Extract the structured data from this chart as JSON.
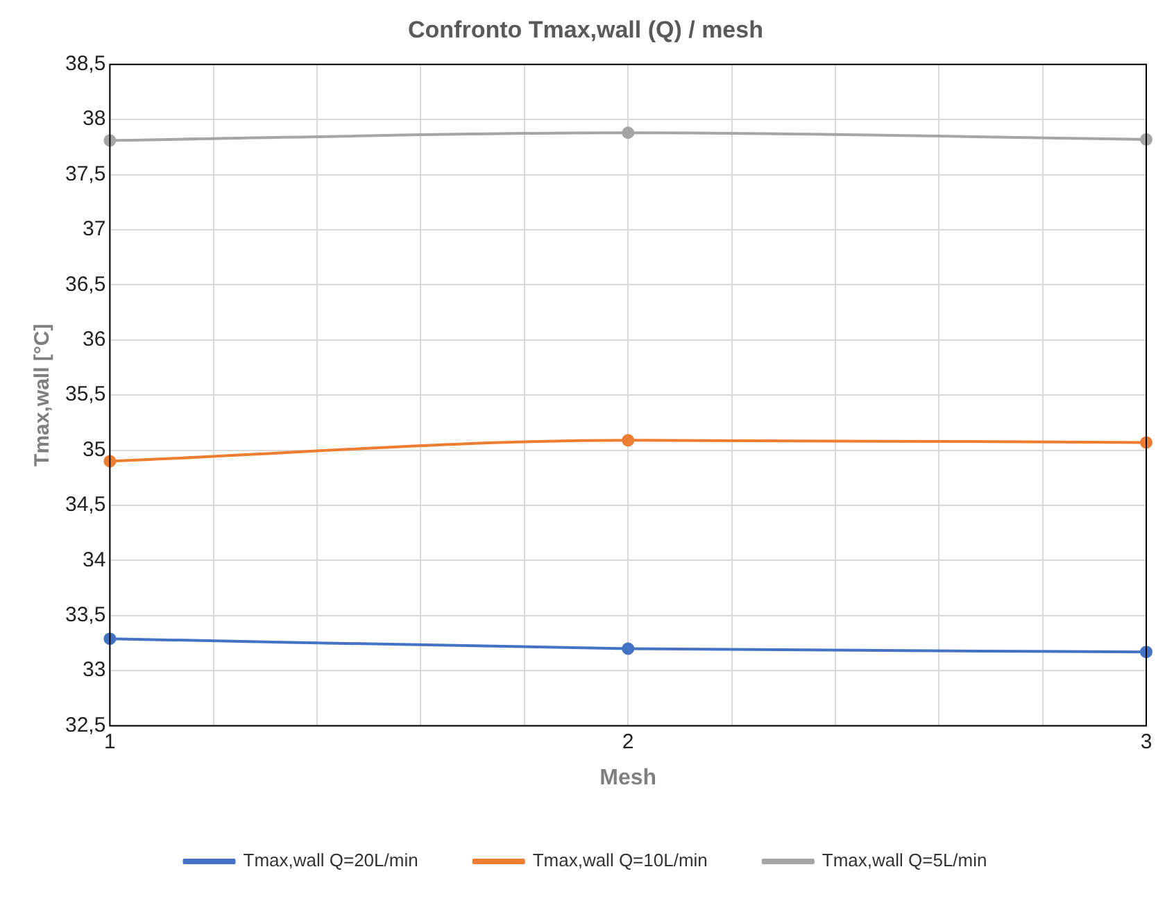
{
  "chart_data": {
    "type": "line",
    "title": "Confronto Tmax,wall (Q) / mesh",
    "xlabel": "Mesh",
    "ylabel": "Tmax,wall [°C]",
    "x": [
      1,
      2,
      3
    ],
    "series": [
      {
        "name": "Tmax,wall Q=20L/min",
        "color": "#4472c4",
        "values": [
          33.29,
          33.2,
          33.17
        ]
      },
      {
        "name": "Tmax,wall Q=10L/min",
        "color": "#ed7d31",
        "values": [
          34.9,
          35.09,
          35.07
        ]
      },
      {
        "name": "Tmax,wall Q=5L/min",
        "color": "#a5a5a5",
        "values": [
          37.81,
          37.88,
          37.82
        ]
      }
    ],
    "xlim": [
      1,
      3
    ],
    "xticks": [
      1,
      {
        "value": 1.2,
        "label": null
      },
      {
        "value": 1.4,
        "label": null
      },
      {
        "value": 1.6,
        "label": null
      },
      {
        "value": 1.8,
        "label": null
      },
      2,
      {
        "value": 2.2,
        "label": null
      },
      {
        "value": 2.4,
        "label": null
      },
      {
        "value": 2.6,
        "label": null
      },
      {
        "value": 2.8,
        "label": null
      },
      3
    ],
    "ylim": [
      32.5,
      38.5
    ],
    "yticks": [
      {
        "value": 32.5,
        "label": "32,5"
      },
      33,
      {
        "value": 33.5,
        "label": "33,5"
      },
      34,
      {
        "value": 34.5,
        "label": "34,5"
      },
      35,
      {
        "value": 35.5,
        "label": "35,5"
      },
      36,
      {
        "value": 36.5,
        "label": "36,5"
      },
      37,
      {
        "value": 37.5,
        "label": "37,5"
      },
      38,
      {
        "value": 38.5,
        "label": "38,5"
      }
    ],
    "grid": true,
    "legend": "bottom",
    "marker": "circle",
    "line_style": "solid"
  }
}
